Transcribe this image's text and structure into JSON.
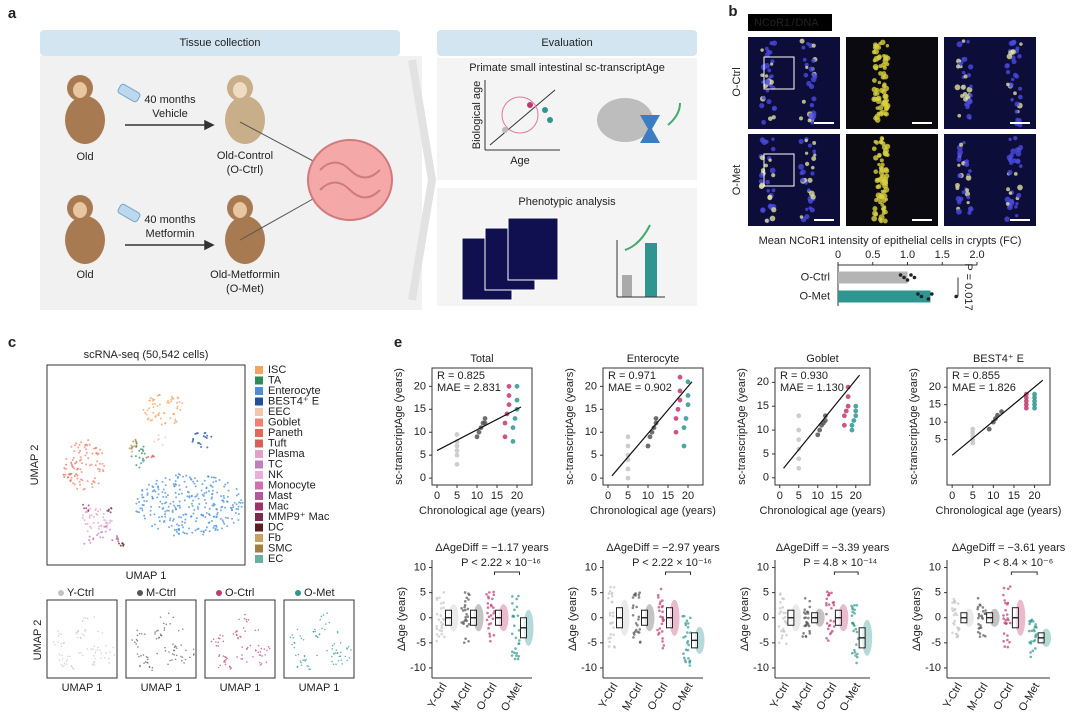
{
  "panel_labels": [
    "a",
    "b",
    "c",
    "e"
  ],
  "panel_a": {
    "left_header": "Tissue collection",
    "right_header": "Evaluation",
    "duration_1": "40 months",
    "treatment_1": "Vehicle",
    "duration_2": "40 months",
    "treatment_2": "Metformin",
    "old_1": "Old",
    "old_2": "Old",
    "group_1": "Old-Control",
    "group_1_abbr": "(O-Ctrl)",
    "group_2": "Old-Metformin",
    "group_2_abbr": "(O-Met)",
    "box_1_title": "Primate small intestinal sc-transcriptAge",
    "box_1_ylabel": "Biological age",
    "box_1_xlabel": "Age",
    "box_2_title": "Phenotypic analysis"
  },
  "panel_b": {
    "stain_1": "NCoR1",
    "separator": "/",
    "stain_2": "DNA",
    "rows": [
      "O-Ctrl",
      "O-Met"
    ]
  },
  "panel_c": {
    "title": "scRNA-seq (50,542 cells)",
    "xlabel": "UMAP 1",
    "ylabel": "UMAP 2",
    "cell_types": [
      {
        "name": "ISC",
        "color": "#f4a460"
      },
      {
        "name": "TA",
        "color": "#2e8b57"
      },
      {
        "name": "Enterocyte",
        "color": "#4a90d9"
      },
      {
        "name": "BEST4⁺ E",
        "color": "#1f4f9f"
      },
      {
        "name": "EEC",
        "color": "#f2c6b0"
      },
      {
        "name": "Goblet",
        "color": "#f08070"
      },
      {
        "name": "Paneth",
        "color": "#e06a5a"
      },
      {
        "name": "Tuft",
        "color": "#d4605a"
      },
      {
        "name": "Plasma",
        "color": "#e3a0c8"
      },
      {
        "name": "TC",
        "color": "#c080c0"
      },
      {
        "name": "NK",
        "color": "#e8b0d8"
      },
      {
        "name": "Monocyte",
        "color": "#d070b0"
      },
      {
        "name": "Mast",
        "color": "#b05a9a"
      },
      {
        "name": "Mac",
        "color": "#a0306a"
      },
      {
        "name": "MMP9⁺ Mac",
        "color": "#7a2a4a"
      },
      {
        "name": "DC",
        "color": "#5a2020"
      },
      {
        "name": "Fb",
        "color": "#c8a060"
      },
      {
        "name": "SMC",
        "color": "#a08040"
      },
      {
        "name": "EC",
        "color": "#6ab0a0"
      }
    ],
    "conditions": [
      {
        "name": "Y-Ctrl",
        "color": "#c4c4c4"
      },
      {
        "name": "M-Ctrl",
        "color": "#555555"
      },
      {
        "name": "O-Ctrl",
        "color": "#c2386f"
      },
      {
        "name": "O-Met",
        "color": "#2f9590"
      }
    ],
    "small_xlabel": "UMAP 1",
    "small_ylabel": "UMAP 2"
  },
  "chart_data": [
    {
      "type": "hbar",
      "title": "Mean NCoR1 intensity of epithelial cells in crypts (FC)",
      "categories": [
        "O-Ctrl",
        "O-Met"
      ],
      "values": [
        1.0,
        1.33
      ],
      "colors": [
        "#b4b4b4",
        "#2f9590"
      ],
      "points": [
        [
          0.9,
          0.95,
          1.0,
          1.05,
          1.1
        ],
        [
          1.15,
          1.2,
          1.3,
          1.35,
          1.7
        ]
      ],
      "xlim": [
        0,
        2.0
      ],
      "xticks": [
        0,
        0.5,
        {
          "value": 1.0,
          "label": "1.0"
        },
        1.5,
        {
          "value": 2.0,
          "label": "2.0"
        }
      ],
      "annotation": "P = 0.017"
    },
    {
      "type": "scatter",
      "title": "Total",
      "annotations": [
        "R = 0.825",
        "MAE = 2.831"
      ],
      "xlabel": "Chronological age (years)",
      "ylabel": "sc-transcriptAge (years)",
      "xlim": [
        -1.25,
        23.75
      ],
      "xticks": [
        0,
        5,
        10,
        15,
        20
      ],
      "ylim": [
        -1.5,
        24
      ],
      "yticks": [
        0,
        5,
        10,
        15,
        20
      ],
      "series": [
        {
          "name": "Y-Ctrl",
          "color": "#c4c4c4",
          "x": [
            5,
            5,
            5,
            5,
            5,
            5
          ],
          "values": [
            3,
            5,
            6,
            7,
            8,
            9.5
          ]
        },
        {
          "name": "M-Ctrl",
          "color": "#555555",
          "x": [
            10,
            10.5,
            11,
            11.5,
            12,
            12
          ],
          "values": [
            9,
            10,
            11,
            12,
            13,
            12
          ]
        },
        {
          "name": "O-Ctrl",
          "color": "#c2386f",
          "x": [
            17,
            17,
            17.5,
            18,
            18,
            18
          ],
          "values": [
            9,
            12,
            14,
            16,
            18,
            20
          ]
        },
        {
          "name": "O-Met",
          "color": "#2f9590",
          "x": [
            19,
            19,
            19.5,
            20,
            20,
            20
          ],
          "values": [
            8,
            11,
            13,
            15,
            17,
            20
          ]
        }
      ],
      "fit": {
        "x": [
          0,
          21
        ],
        "values": [
          6,
          15.5
        ]
      }
    },
    {
      "type": "scatter",
      "title": "Enterocyte",
      "annotations": [
        "R = 0.971",
        "MAE = 0.902"
      ],
      "xlabel": "Chronological age (years)",
      "ylabel": "sc-transcriptAge (years)",
      "xlim": [
        -1.25,
        23.75
      ],
      "xticks": [
        0,
        5,
        10,
        15,
        20
      ],
      "ylim": [
        -1.5,
        24
      ],
      "yticks": [
        0,
        5,
        10,
        15,
        20
      ],
      "series": [
        {
          "name": "Y-Ctrl",
          "color": "#c4c4c4",
          "x": [
            5,
            5,
            5,
            5,
            5,
            5
          ],
          "values": [
            0,
            2,
            4,
            5,
            7,
            9
          ]
        },
        {
          "name": "M-Ctrl",
          "color": "#555555",
          "x": [
            10,
            10.5,
            11,
            11.5,
            12,
            12
          ],
          "values": [
            7,
            9,
            10,
            11,
            12,
            13
          ]
        },
        {
          "name": "O-Ctrl",
          "color": "#c2386f",
          "x": [
            17,
            17,
            17.5,
            18,
            18,
            18
          ],
          "values": [
            10,
            13,
            15,
            17,
            19,
            22
          ]
        },
        {
          "name": "O-Met",
          "color": "#2f9590",
          "x": [
            19,
            19,
            19.5,
            20,
            20,
            20
          ],
          "values": [
            7,
            11,
            13,
            16,
            18,
            21
          ]
        }
      ],
      "fit": {
        "x": [
          1,
          21
        ],
        "values": [
          0.5,
          21
        ]
      }
    },
    {
      "type": "scatter",
      "title": "Goblet",
      "annotations": [
        "R = 0.930",
        "MAE = 1.130"
      ],
      "xlabel": "Chronological age (years)",
      "ylabel": "sc-transcriptAge (years)",
      "xlim": [
        -1.25,
        23.75
      ],
      "xticks": [
        0,
        5,
        10,
        15,
        20
      ],
      "ylim": [
        -1.5,
        23
      ],
      "yticks": [
        0,
        5,
        10,
        15,
        20
      ],
      "series": [
        {
          "name": "Y-Ctrl",
          "color": "#c4c4c4",
          "x": [
            5,
            5,
            5,
            5,
            5,
            5
          ],
          "values": [
            2,
            4,
            6,
            8,
            10,
            13
          ]
        },
        {
          "name": "M-Ctrl",
          "color": "#555555",
          "x": [
            10,
            10.5,
            11,
            11.5,
            12,
            12
          ],
          "values": [
            9,
            10,
            11,
            11.5,
            12,
            13
          ]
        },
        {
          "name": "O-Ctrl",
          "color": "#c2386f",
          "x": [
            17,
            17,
            17.5,
            18,
            18,
            18
          ],
          "values": [
            11,
            13,
            14,
            15,
            17,
            19
          ]
        },
        {
          "name": "O-Met",
          "color": "#2f9590",
          "x": [
            19,
            19,
            19.5,
            20,
            20,
            20
          ],
          "values": [
            10,
            11,
            12,
            13,
            14,
            15
          ]
        }
      ],
      "fit": {
        "x": [
          1,
          21
        ],
        "values": [
          2,
          21.5
        ]
      }
    },
    {
      "type": "scatter",
      "title": "BEST4⁺ E",
      "annotations": [
        "R = 0.855",
        "MAE = 1.826"
      ],
      "xlabel": "Chronological age (years)",
      "ylabel": "sc-transcriptAge (years)",
      "xlim": [
        -1.25,
        23.75
      ],
      "xticks": [
        0,
        5,
        10,
        15,
        20
      ],
      "ylim": [
        -8,
        25.5
      ],
      "yticks": [
        5,
        10,
        15,
        20
      ],
      "series": [
        {
          "name": "Y-Ctrl",
          "color": "#c4c4c4",
          "x": [
            5,
            5,
            5,
            5,
            5
          ],
          "values": [
            4,
            5,
            6,
            7,
            8
          ]
        },
        {
          "name": "M-Ctrl",
          "color": "#555555",
          "x": [
            9,
            10,
            10.5,
            11,
            12
          ],
          "values": [
            8,
            10,
            11,
            12,
            13
          ]
        },
        {
          "name": "O-Ctrl",
          "color": "#c2386f",
          "x": [
            18,
            18,
            18,
            18,
            18
          ],
          "values": [
            14,
            15,
            16,
            17,
            18
          ]
        },
        {
          "name": "O-Met",
          "color": "#2f9590",
          "x": [
            20,
            20,
            20,
            20,
            20
          ],
          "values": [
            14,
            15,
            16,
            17,
            18
          ]
        }
      ],
      "fit": {
        "x": [
          0,
          22
        ],
        "values": [
          0.5,
          22
        ]
      }
    },
    {
      "type": "box",
      "title": "ΔAgeDiff = −1.17 years",
      "annotation": "P < 2.22 × 10⁻¹⁶",
      "ylabel": "ΔAge (years)",
      "categories": [
        "Y-Ctrl",
        "M-Ctrl",
        "O-Ctrl",
        "O-Met"
      ],
      "colors": [
        "#c4c4c4",
        "#555555",
        "#c2386f",
        "#2f9590"
      ],
      "ylim": [
        -12,
        11.5
      ],
      "yticks": [
        -10,
        -5,
        0,
        5,
        10
      ],
      "median": [
        0,
        0,
        0,
        -2
      ],
      "q1": [
        -1.5,
        -1.5,
        -1.5,
        -4
      ],
      "q3": [
        1.5,
        1.5,
        1.5,
        0
      ]
    },
    {
      "type": "box",
      "title": "ΔAgeDiff = −2.97 years",
      "annotation": "P < 2.22 × 10⁻¹⁶",
      "ylabel": "ΔAge (years)",
      "categories": [
        "Y-Ctrl",
        "M-Ctrl",
        "O-Ctrl",
        "O-Met"
      ],
      "colors": [
        "#c4c4c4",
        "#555555",
        "#c2386f",
        "#2f9590"
      ],
      "ylim": [
        -12,
        11.5
      ],
      "yticks": [
        -10,
        -5,
        0,
        5,
        10
      ],
      "median": [
        0,
        0,
        0,
        -4.5
      ],
      "q1": [
        -2,
        -1.5,
        -2,
        -6
      ],
      "q3": [
        2,
        1.5,
        2,
        -3
      ]
    },
    {
      "type": "box",
      "title": "ΔAgeDiff = −3.39 years",
      "annotation": "P = 4.8 × 10⁻¹⁴",
      "ylabel": "ΔAge (years)",
      "categories": [
        "Y-Ctrl",
        "M-Ctrl",
        "O-Ctrl",
        "O-Met"
      ],
      "colors": [
        "#c4c4c4",
        "#555555",
        "#c2386f",
        "#2f9590"
      ],
      "ylim": [
        -12,
        11.5
      ],
      "yticks": [
        -10,
        -5,
        0,
        5,
        10
      ],
      "median": [
        0,
        0,
        0,
        -4
      ],
      "q1": [
        -1.5,
        -1,
        -1.5,
        -6
      ],
      "q3": [
        1.5,
        1,
        1.5,
        -2
      ]
    },
    {
      "type": "box",
      "title": "ΔAgeDiff = −3.61 years",
      "annotation": "P < 8.4 × 10⁻⁶",
      "ylabel": "ΔAge (years)",
      "categories": [
        "Y-Ctrl",
        "M-Ctrl",
        "O-Ctrl",
        "O-Met"
      ],
      "colors": [
        "#c4c4c4",
        "#555555",
        "#c2386f",
        "#2f9590"
      ],
      "ylim": [
        -12,
        11.5
      ],
      "yticks": [
        -10,
        -5,
        0,
        5,
        10
      ],
      "median": [
        0,
        0,
        0,
        -4
      ],
      "q1": [
        -1,
        -1,
        -2,
        -5
      ],
      "q3": [
        1,
        1,
        2,
        -3
      ]
    }
  ]
}
